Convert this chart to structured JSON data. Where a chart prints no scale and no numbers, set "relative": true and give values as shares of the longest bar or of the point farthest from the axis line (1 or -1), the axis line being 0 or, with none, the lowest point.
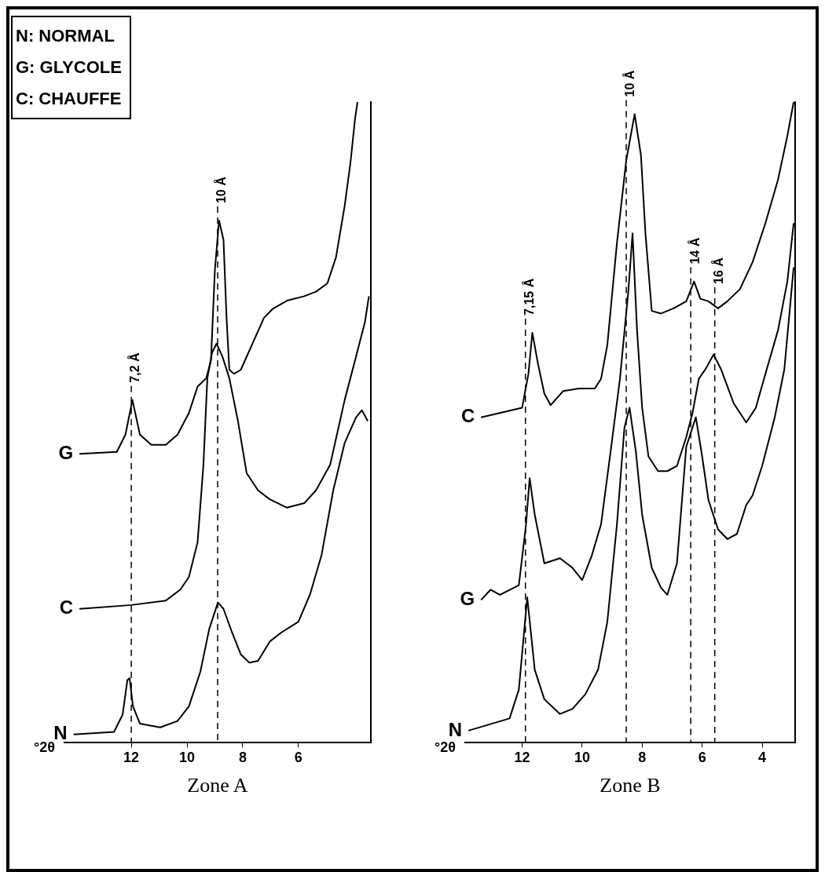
{
  "chart_data": [
    {
      "type": "line",
      "title": "Zone A",
      "xlabel": "°2θ",
      "relative": true,
      "xlim": [
        14.4,
        3.4
      ],
      "xticks": [
        12,
        10,
        8,
        6
      ],
      "grid": false,
      "legend": false,
      "marker": "none",
      "line_style": "solid",
      "tick_labels": "x",
      "annotations": [
        "N: NORMAL",
        "G: GLYCOLE",
        "C: CHAUFFE"
      ],
      "ref_lines": [
        {
          "axis": "x",
          "value": 12.0,
          "label": "7,2 Å"
        },
        {
          "axis": "x",
          "value": 8.9,
          "label": "10 Å"
        }
      ],
      "series": [
        {
          "name": "G",
          "color": "#000000",
          "x": [
            13.86,
            12.52,
            12.21,
            11.96,
            11.69,
            11.28,
            10.76,
            10.34,
            9.93,
            9.62,
            9.31,
            9.14,
            9.0,
            8.85,
            8.69,
            8.58,
            8.48,
            8.31,
            8.07,
            7.65,
            7.24,
            6.93,
            6.41,
            5.79,
            5.37,
            4.96,
            4.65,
            4.34,
            4.13,
            3.97,
            3.88
          ],
          "values": [
            0.451,
            0.454,
            0.481,
            0.535,
            0.481,
            0.465,
            0.465,
            0.481,
            0.515,
            0.556,
            0.569,
            0.596,
            0.737,
            0.815,
            0.785,
            0.663,
            0.582,
            0.576,
            0.582,
            0.623,
            0.663,
            0.677,
            0.69,
            0.697,
            0.704,
            0.717,
            0.758,
            0.838,
            0.906,
            0.973,
            1.0
          ]
        },
        {
          "name": "C",
          "color": "#000000",
          "x": [
            13.86,
            12.0,
            10.76,
            10.24,
            9.93,
            9.62,
            9.41,
            9.27,
            9.1,
            8.94,
            8.73,
            8.48,
            8.17,
            7.86,
            7.45,
            7.03,
            6.41,
            5.79,
            5.37,
            4.86,
            4.34,
            3.93,
            3.61,
            3.47
          ],
          "values": [
            0.209,
            0.215,
            0.222,
            0.239,
            0.259,
            0.313,
            0.434,
            0.569,
            0.609,
            0.623,
            0.603,
            0.569,
            0.502,
            0.421,
            0.394,
            0.38,
            0.367,
            0.374,
            0.394,
            0.434,
            0.535,
            0.603,
            0.657,
            0.697
          ]
        },
        {
          "name": "N",
          "color": "#000000",
          "x": [
            14.07,
            12.62,
            12.31,
            12.14,
            12.06,
            11.94,
            11.69,
            10.96,
            10.34,
            9.93,
            9.52,
            9.2,
            8.89,
            8.69,
            8.38,
            8.07,
            7.76,
            7.45,
            7.03,
            6.62,
            6.0,
            5.58,
            5.17,
            4.75,
            4.34,
            3.93,
            3.72,
            3.51
          ],
          "values": [
            0.013,
            0.017,
            0.044,
            0.098,
            0.101,
            0.057,
            0.03,
            0.024,
            0.034,
            0.057,
            0.111,
            0.178,
            0.219,
            0.209,
            0.172,
            0.138,
            0.125,
            0.128,
            0.158,
            0.172,
            0.189,
            0.232,
            0.293,
            0.394,
            0.468,
            0.508,
            0.519,
            0.502
          ]
        }
      ]
    },
    {
      "type": "line",
      "title": "Zone B",
      "xlabel": "°2θ",
      "relative": true,
      "xlim": [
        13.9,
        2.9
      ],
      "xticks": [
        12,
        10,
        8,
        6,
        4
      ],
      "grid": false,
      "legend": false,
      "marker": "none",
      "line_style": "solid",
      "tick_labels": "x",
      "ref_lines": [
        {
          "axis": "x",
          "value": 11.89,
          "label": "7,15 Å"
        },
        {
          "axis": "x",
          "value": 8.53,
          "label": "10 Å"
        },
        {
          "axis": "x",
          "value": 6.38,
          "label": "14 Å"
        },
        {
          "axis": "x",
          "value": 5.58,
          "label": "16 Å"
        }
      ],
      "series": [
        {
          "name": "C",
          "color": "#000000",
          "x": [
            13.37,
            12.0,
            11.79,
            11.66,
            11.47,
            11.26,
            11.05,
            10.63,
            10.11,
            9.58,
            9.37,
            9.16,
            8.84,
            8.53,
            8.25,
            8.04,
            7.89,
            7.68,
            7.37,
            6.95,
            6.53,
            6.27,
            6.06,
            5.79,
            5.47,
            5.16,
            4.74,
            4.32,
            3.89,
            3.47,
            3.16,
            2.95
          ],
          "values": [
            0.508,
            0.523,
            0.576,
            0.64,
            0.591,
            0.545,
            0.527,
            0.549,
            0.553,
            0.553,
            0.568,
            0.621,
            0.78,
            0.909,
            0.981,
            0.917,
            0.795,
            0.674,
            0.67,
            0.678,
            0.689,
            0.72,
            0.693,
            0.689,
            0.678,
            0.689,
            0.708,
            0.75,
            0.811,
            0.879,
            0.947,
            1.0
          ]
        },
        {
          "name": "G",
          "color": "#000000",
          "x": [
            13.37,
            13.05,
            12.74,
            12.11,
            11.87,
            11.75,
            11.58,
            11.26,
            10.74,
            10.32,
            10.0,
            9.68,
            9.37,
            9.05,
            8.74,
            8.46,
            8.32,
            8.17,
            8.0,
            7.79,
            7.47,
            7.16,
            6.84,
            6.53,
            6.32,
            6.11,
            5.89,
            5.62,
            5.37,
            4.95,
            4.53,
            4.21,
            3.89,
            3.47,
            3.16,
            2.95
          ],
          "values": [
            0.223,
            0.239,
            0.231,
            0.246,
            0.341,
            0.413,
            0.356,
            0.28,
            0.288,
            0.273,
            0.254,
            0.292,
            0.341,
            0.455,
            0.568,
            0.705,
            0.795,
            0.644,
            0.523,
            0.447,
            0.424,
            0.424,
            0.432,
            0.477,
            0.515,
            0.568,
            0.583,
            0.606,
            0.583,
            0.53,
            0.5,
            0.523,
            0.576,
            0.644,
            0.72,
            0.811
          ]
        },
        {
          "name": "N",
          "color": "#000000",
          "x": [
            13.79,
            12.42,
            12.11,
            11.83,
            11.58,
            11.26,
            10.74,
            10.32,
            9.89,
            9.47,
            9.16,
            8.84,
            8.59,
            8.42,
            8.21,
            8.0,
            7.68,
            7.37,
            7.16,
            6.84,
            6.53,
            6.21,
            6.0,
            5.79,
            5.47,
            5.16,
            4.84,
            4.53,
            4.32,
            4.0,
            3.58,
            3.26,
            2.95
          ],
          "values": [
            0.019,
            0.038,
            0.083,
            0.227,
            0.114,
            0.068,
            0.045,
            0.053,
            0.076,
            0.114,
            0.189,
            0.341,
            0.492,
            0.523,
            0.455,
            0.356,
            0.273,
            0.242,
            0.231,
            0.28,
            0.462,
            0.508,
            0.447,
            0.379,
            0.333,
            0.318,
            0.326,
            0.371,
            0.386,
            0.432,
            0.508,
            0.583,
            0.742
          ]
        }
      ]
    }
  ]
}
